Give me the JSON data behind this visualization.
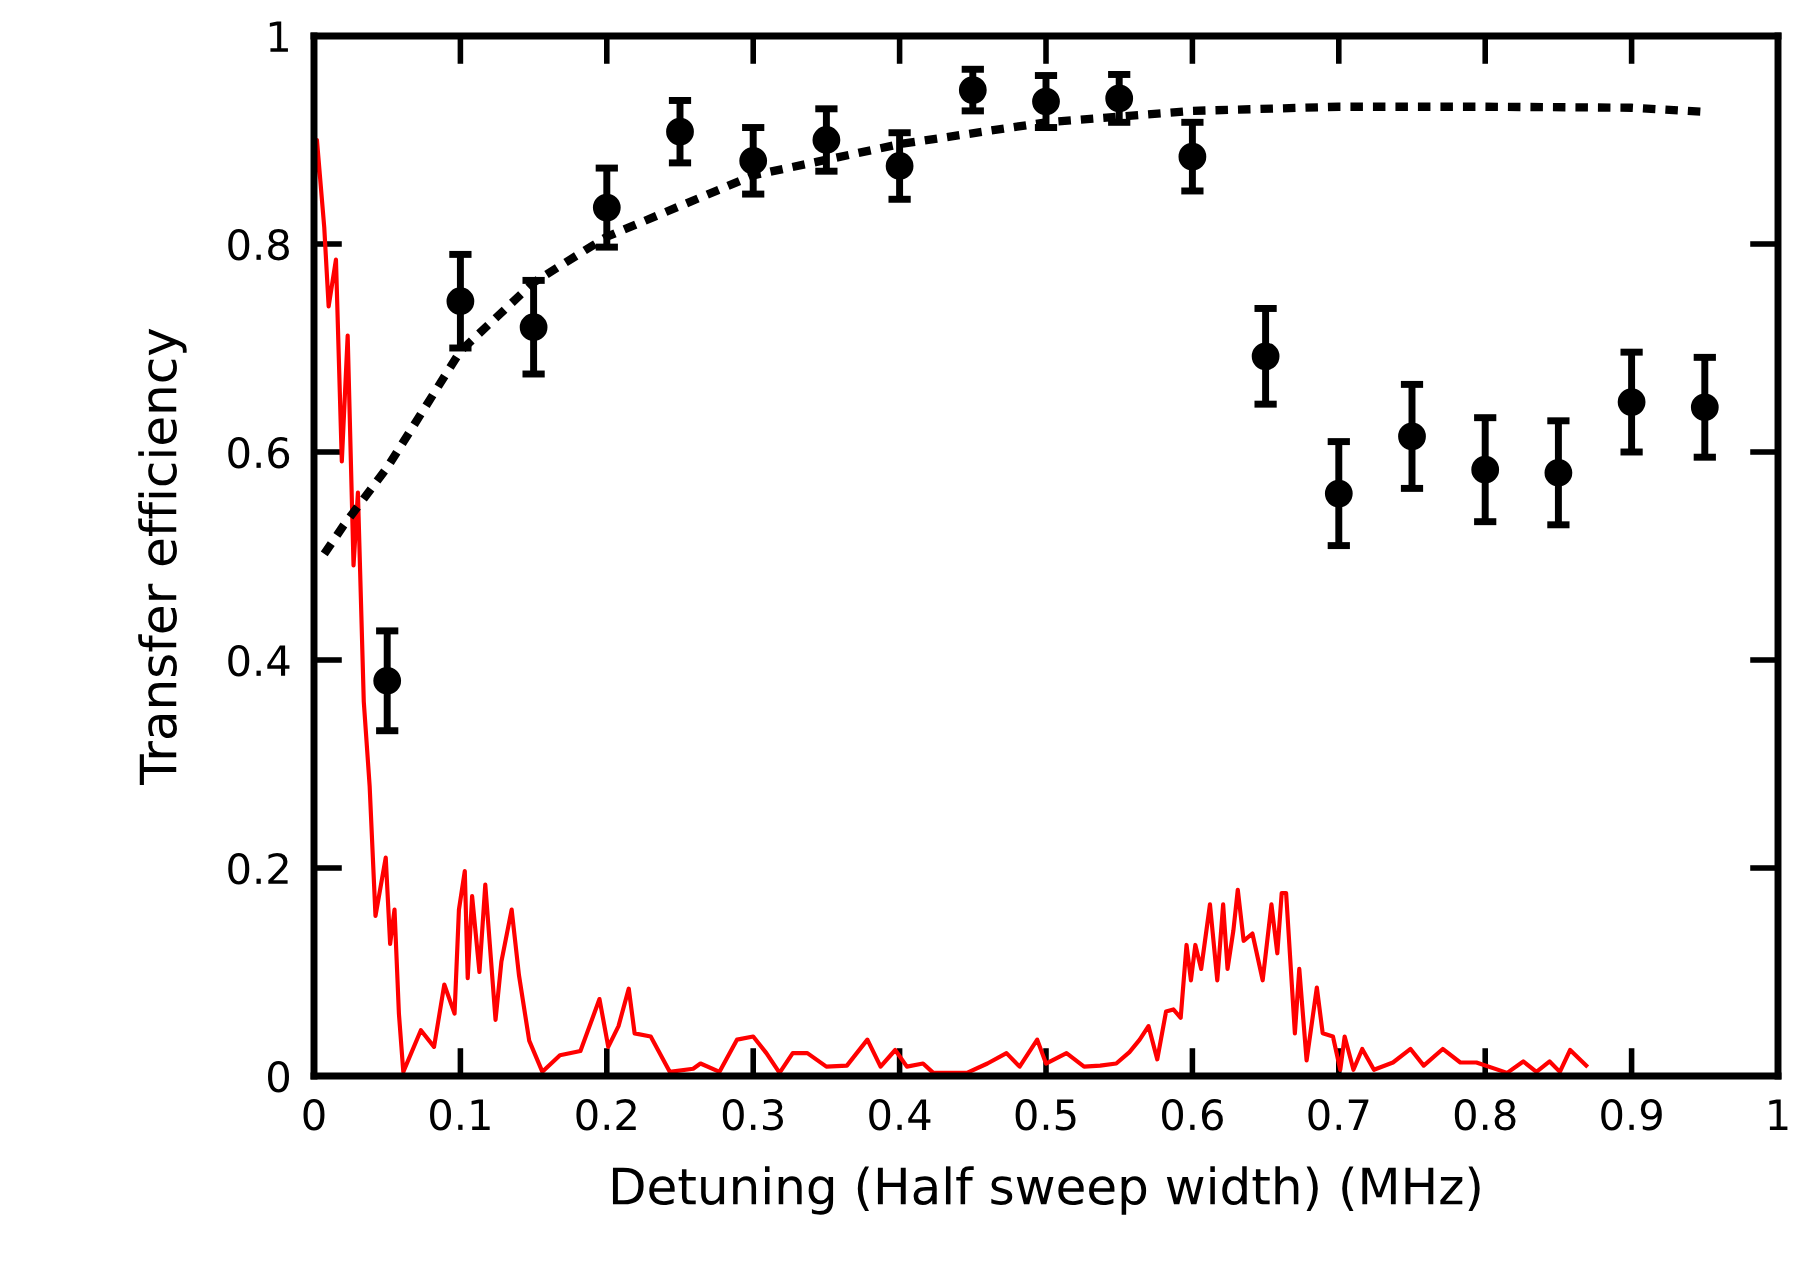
{
  "chart_data": {
    "type": "scatter",
    "xlabel": "Detuning (Half sweep width) (MHz)",
    "ylabel": "Transfer efficiency",
    "xlim": [
      0,
      1
    ],
    "ylim": [
      0,
      1
    ],
    "xticks": [
      0,
      0.1,
      0.2,
      0.3,
      0.4,
      0.5,
      0.6,
      0.7,
      0.8,
      0.9,
      1
    ],
    "yticks": [
      0,
      0.2,
      0.4,
      0.6,
      0.8,
      1
    ],
    "grid": false,
    "legend": false,
    "series": [
      {
        "type": "line",
        "color": "#ff0000",
        "line_style": "solid",
        "marker": "none",
        "x": [
          0.0,
          0.002,
          0.007,
          0.01,
          0.015,
          0.019,
          0.023,
          0.027,
          0.03,
          0.034,
          0.038,
          0.042,
          0.049,
          0.052,
          0.055,
          0.058,
          0.061,
          0.073,
          0.082,
          0.089,
          0.096,
          0.099,
          0.103,
          0.105,
          0.108,
          0.113,
          0.117,
          0.124,
          0.128,
          0.135,
          0.14,
          0.147,
          0.156,
          0.168,
          0.182,
          0.195,
          0.201,
          0.208,
          0.215,
          0.219,
          0.23,
          0.243,
          0.259,
          0.264,
          0.277,
          0.289,
          0.3,
          0.309,
          0.318,
          0.327,
          0.337,
          0.35,
          0.364,
          0.378,
          0.387,
          0.397,
          0.405,
          0.416,
          0.423,
          0.446,
          0.46,
          0.473,
          0.482,
          0.494,
          0.5,
          0.514,
          0.526,
          0.537,
          0.548,
          0.557,
          0.564,
          0.57,
          0.576,
          0.582,
          0.587,
          0.592,
          0.596,
          0.599,
          0.602,
          0.606,
          0.612,
          0.617,
          0.621,
          0.624,
          0.628,
          0.631,
          0.635,
          0.641,
          0.648,
          0.654,
          0.658,
          0.661,
          0.664,
          0.67,
          0.673,
          0.678,
          0.685,
          0.689,
          0.696,
          0.701,
          0.704,
          0.71,
          0.716,
          0.724,
          0.737,
          0.749,
          0.758,
          0.771,
          0.783,
          0.794,
          0.815,
          0.826,
          0.835,
          0.844,
          0.851,
          0.858,
          0.869
        ],
        "values": [
          0.843,
          0.9,
          0.816,
          0.74,
          0.785,
          0.591,
          0.712,
          0.491,
          0.561,
          0.36,
          0.279,
          0.154,
          0.21,
          0.127,
          0.16,
          0.06,
          0.004,
          0.044,
          0.028,
          0.088,
          0.06,
          0.16,
          0.197,
          0.094,
          0.173,
          0.1,
          0.184,
          0.054,
          0.11,
          0.16,
          0.097,
          0.034,
          0.004,
          0.02,
          0.024,
          0.074,
          0.028,
          0.048,
          0.084,
          0.041,
          0.038,
          0.004,
          0.007,
          0.012,
          0.004,
          0.035,
          0.038,
          0.022,
          0.003,
          0.022,
          0.022,
          0.009,
          0.01,
          0.035,
          0.009,
          0.025,
          0.009,
          0.012,
          0.003,
          0.003,
          0.012,
          0.022,
          0.009,
          0.035,
          0.012,
          0.022,
          0.009,
          0.01,
          0.012,
          0.023,
          0.035,
          0.048,
          0.016,
          0.062,
          0.064,
          0.056,
          0.126,
          0.092,
          0.126,
          0.103,
          0.165,
          0.092,
          0.165,
          0.103,
          0.14,
          0.179,
          0.13,
          0.137,
          0.092,
          0.165,
          0.118,
          0.176,
          0.176,
          0.041,
          0.103,
          0.015,
          0.085,
          0.041,
          0.038,
          0.006,
          0.038,
          0.006,
          0.026,
          0.006,
          0.013,
          0.026,
          0.01,
          0.026,
          0.013,
          0.013,
          0.003,
          0.014,
          0.004,
          0.014,
          0.004,
          0.025,
          0.01
        ]
      },
      {
        "type": "line",
        "color": "#000000",
        "line_style": "dotted",
        "marker": "none",
        "x": [
          0.007,
          0.02,
          0.05,
          0.1,
          0.15,
          0.2,
          0.3,
          0.4,
          0.5,
          0.6,
          0.7,
          0.8,
          0.9,
          0.95
        ],
        "values": [
          0.502,
          0.529,
          0.585,
          0.697,
          0.763,
          0.807,
          0.866,
          0.896,
          0.917,
          0.928,
          0.932,
          0.932,
          0.931,
          0.927
        ]
      },
      {
        "color": "#000000",
        "marker": "circle",
        "x": [
          0.05,
          0.1,
          0.15,
          0.2,
          0.25,
          0.3,
          0.35,
          0.4,
          0.45,
          0.5,
          0.55,
          0.6,
          0.65,
          0.7,
          0.75,
          0.8,
          0.85,
          0.9,
          0.95
        ],
        "values": [
          0.38,
          0.745,
          0.72,
          0.835,
          0.908,
          0.88,
          0.9,
          0.875,
          0.948,
          0.937,
          0.94,
          0.884,
          0.692,
          0.56,
          0.615,
          0.583,
          0.58,
          0.648,
          0.643
        ],
        "errors": [
          0.048,
          0.045,
          0.045,
          0.038,
          0.03,
          0.032,
          0.03,
          0.032,
          0.02,
          0.025,
          0.023,
          0.033,
          0.046,
          0.05,
          0.05,
          0.05,
          0.05,
          0.048,
          0.048
        ]
      }
    ]
  }
}
